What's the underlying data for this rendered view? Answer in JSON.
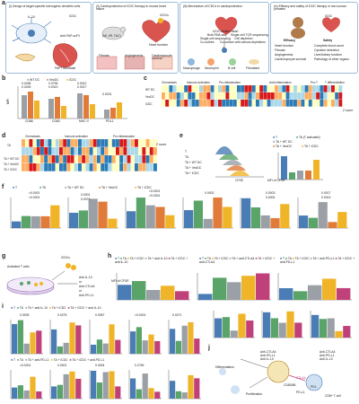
{
  "colors": {
    "t": "#4a7db5",
    "wtdc": "#9aa0a6",
    "vecdc": "#e07b39",
    "icdc": "#f0b429",
    "ta": "#5aa469",
    "pink": "#c0417a",
    "heat_high": "#d73027",
    "heat_mid": "#fee08b",
    "heat_low": "#2c7bb6"
  },
  "panel_a": {
    "i_title": "(i) Design of target-specific tolerogenic dendritic cells",
    "ii_title": "(ii) Cardioprotection of iCDC therapy in mouse heart failure",
    "iii_title": "(iii) Mechanism of iCDCs in cardioprotection",
    "iv_title": "(iv) Efficacy and safety of iCDC therapy in non-human primates",
    "labels_i": [
      "IL-10",
      "iCDC",
      "Anti-FAP-scFV",
      "FAP+ fibroblast"
    ],
    "labels_ii": [
      "iCDCs",
      "(MI, I/R, TAC)",
      "Heart function",
      "Fibrosis",
      "Angiogenesis",
      "Cardiomyocyte survival"
    ],
    "labels_iii": [
      "iCDC-treated heart",
      "Bulk RNA-seq",
      "Single-cell TCR sequencing",
      "Single-cell sequencing",
      "Cell depletion",
      "Co-culture",
      "Co-culture with various depletions",
      "Macrophage",
      "Neutrophil",
      "B cell",
      "Fibroblast",
      "T"
    ],
    "labels_iv": [
      "iCDC",
      "Efficacy",
      "Safety",
      "Heart function",
      "Fibrosis",
      "Angiogenesis",
      "Cardiomyocyte survival",
      "Complete blood count",
      "Cytokine detection",
      "Liver/kidney function",
      "Pathology of other organs"
    ]
  },
  "panel_b": {
    "legend": [
      "WT DC",
      "VecDC",
      "iCDC"
    ],
    "ylabel": "MFI",
    "categories": [
      "CD86",
      "CD80",
      "MHC II",
      "PDL1"
    ],
    "pvalues": [
      "0.0438",
      "0.0796",
      "0.0245",
      "0.0313",
      "0.0012",
      "0.0017",
      "0.0231"
    ]
  },
  "panel_c": {
    "titles": [
      "Chemotaxis",
      "Immune activation",
      "Pro-inflammation",
      "Anti-inflammation",
      "Pro-T",
      "T differentiation"
    ],
    "rows": [
      "WT DC",
      "VecDC",
      "iCDC"
    ],
    "scale": "Z score"
  },
  "panel_d": {
    "titles": [
      "Chemotaxis",
      "Immune activation",
      "Pro-inflammation"
    ],
    "rows": [
      "TA",
      "TA + WT DC",
      "TA + VecDC",
      "TA + iCDC"
    ],
    "scale": "Z score"
  },
  "panel_e": {
    "legend": [
      "T",
      "TA (T activated)",
      "TA + WT DC",
      "TA + VecDC",
      "TA + iCDC"
    ],
    "rows": [
      "T",
      "TA",
      "TA + WT DC",
      "TA + VecDC",
      "TA + iCDC"
    ],
    "xlabel": "CFSE",
    "ylabel": "MFI of CFSE"
  },
  "panel_f": {
    "legend": [
      "T",
      "TA",
      "TA + WT DC",
      "TA + VecDC",
      "TA + iCDC"
    ],
    "pvalues": [
      "<0.0001",
      "<0.0001",
      "<0.0001",
      "0.0001",
      "0.0071",
      "<0.0001",
      "<0.0001",
      "0.0002",
      "0.0003",
      "0.0004",
      "0.0017",
      "0.0013"
    ]
  },
  "panel_g": {
    "labels": [
      "Activated T cells",
      "iCDCs",
      "Anti-IL-10",
      "or",
      "Anti-CTLA4",
      "or",
      "Anti-PD-L1"
    ]
  },
  "panel_h": {
    "legend_a": [
      "T",
      "TA",
      "TA + iCDC",
      "TA + anti-IL-10",
      "TA + iCDC + anti-IL-10"
    ],
    "legend_b": [
      "T",
      "TA",
      "TA + iCDC",
      "TA + anti-CTLA4",
      "TA + iCDC + anti-CTLA4"
    ],
    "legend_c": [
      "T",
      "TA",
      "TA + iCDC",
      "TA + anti-PD-L1",
      "TA + iCDC + anti-PD-L1"
    ],
    "ylabel": "MFI of CFSE"
  },
  "panel_i": {
    "legend": [
      "T",
      "TA",
      "TA + anti-IL-10",
      "TA + iCDC",
      "TA + iCDC + anti-IL-10"
    ],
    "legend2": [
      "T",
      "TA",
      "TA + anti-PD-L1",
      "TA + iCDC",
      "TA + iCDC + anti-PD-L1"
    ],
    "pvalues": [
      "0.0009",
      "0.0275",
      "0.0057",
      "<0.0001",
      "0.0271",
      "0.0033",
      "0.0085",
      "0.0144",
      "<0.0001",
      "0.0001",
      "0.0004",
      "0.2769"
    ]
  },
  "panel_j": {
    "labels": [
      "Anti-CTLA4",
      "Anti-PD-L1",
      "Anti-IL-10",
      "Anti-CTLA4",
      "Anti-PD-L1",
      "Anti-IL-10",
      "Differentiation",
      "Proliferation",
      "CTLA4",
      "CD80/86",
      "PD1",
      "PD-L1",
      "CD8+ T cell"
    ]
  }
}
